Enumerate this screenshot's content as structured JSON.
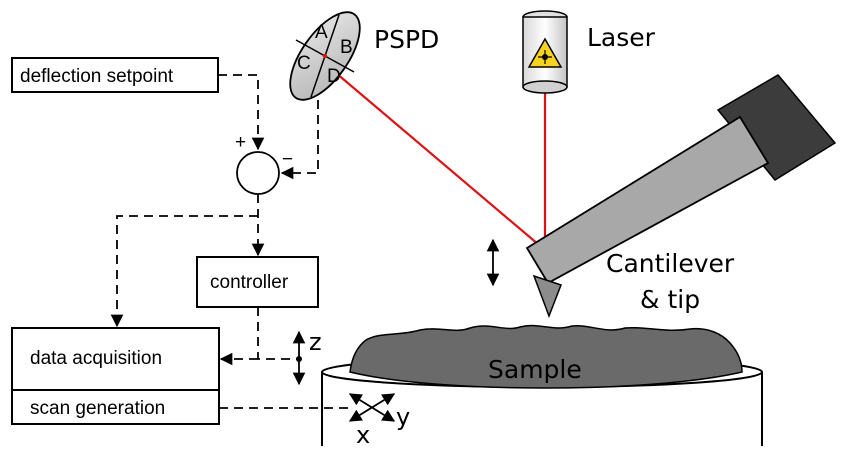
{
  "labels": {
    "deflection_setpoint": "deflection setpoint",
    "controller": "controller",
    "data_acquisition": "data acquisition",
    "scan_generation": "scan generation",
    "pspd": "PSPD",
    "laser": "Laser",
    "cantilever_line1": "Cantilever",
    "cantilever_line2": "& tip",
    "sample": "Sample",
    "plus": "+",
    "minus": "−",
    "quadrant_a": "A",
    "quadrant_b": "B",
    "quadrant_c": "C",
    "quadrant_d": "D",
    "axis_z": "z",
    "axis_x": "x",
    "axis_y": "y"
  },
  "colors": {
    "laser_beam": "#dd1111",
    "laser_warning": "#f7d21e",
    "cantilever": "#a8a8a8",
    "cantilever_holder": "#3c3c3c",
    "sample_fill": "#6a6a6a",
    "pspd_fill": "#cfcfcf",
    "line": "#000000"
  },
  "icons": {
    "laser_warning": "laser-warning-icon"
  }
}
